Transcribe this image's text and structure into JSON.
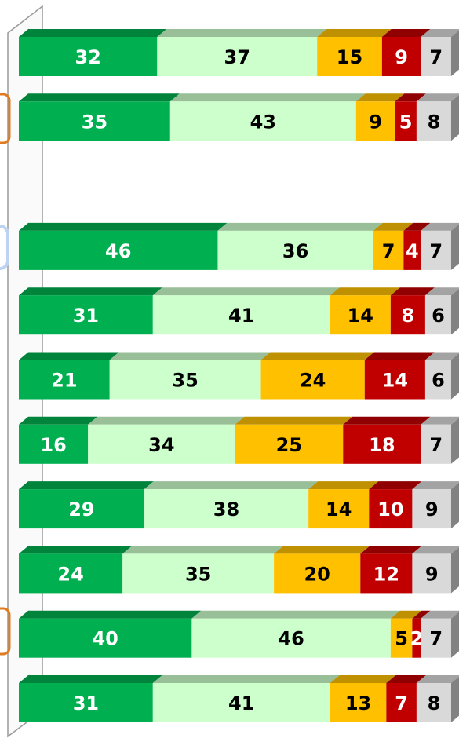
{
  "chart_data": {
    "type": "stacked-bar-horizontal",
    "categories": [
      null,
      null,
      null,
      null,
      null,
      null,
      null,
      null,
      null,
      null,
      null
    ],
    "xlim": [
      0,
      100
    ],
    "series": [
      {
        "color": "#00b050",
        "label_color": "#ffffff",
        "values": [
          32,
          35,
          null,
          46,
          31,
          21,
          16,
          29,
          24,
          40,
          31
        ]
      },
      {
        "color": "#ccffcc",
        "label_color": "#000000",
        "values": [
          37,
          43,
          null,
          36,
          41,
          35,
          34,
          38,
          35,
          46,
          41
        ]
      },
      {
        "color": "#ffc000",
        "label_color": "#000000",
        "values": [
          15,
          9,
          null,
          7,
          14,
          24,
          25,
          14,
          20,
          5,
          13
        ]
      },
      {
        "color": "#c00000",
        "label_color": "#ffffff",
        "values": [
          9,
          5,
          null,
          4,
          8,
          14,
          18,
          10,
          12,
          2,
          7
        ]
      },
      {
        "color": "#d9d9d9",
        "label_color": "#000000",
        "values": [
          7,
          8,
          null,
          7,
          6,
          6,
          7,
          9,
          9,
          7,
          8
        ]
      }
    ]
  }
}
